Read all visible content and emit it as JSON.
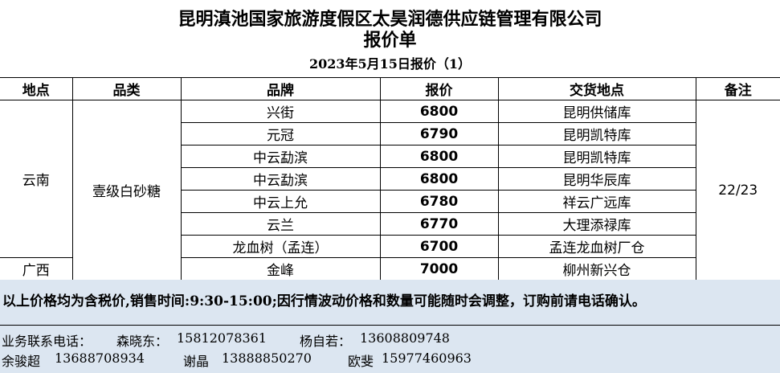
{
  "title": "昆明滇池国家旅游度假区太昊润德供应链管理有限公司",
  "subtitle": "报价单",
  "date": "2023年5月15日报价（1）",
  "headers": [
    "地点",
    "品类",
    "品牌",
    "报价",
    "交货地点",
    "备注"
  ],
  "category": "壹级白砂糖",
  "note": "22/23",
  "regions": {
    "yunnan": "云南",
    "guangxi": "广西"
  },
  "rows": [
    {
      "brand": "兴街",
      "price": "6800",
      "location": "昆明供储库"
    },
    {
      "brand": "元冠",
      "price": "6790",
      "location": "昆明凯特库"
    },
    {
      "brand": "中云勐滨",
      "price": "6800",
      "location": "昆明凯特库"
    },
    {
      "brand": "中云勐滨",
      "price": "6800",
      "location": "昆明华辰库"
    },
    {
      "brand": "中云上允",
      "price": "6780",
      "location": "祥云广远库"
    },
    {
      "brand": "云兰",
      "price": "6770",
      "location": "大理添禄库"
    },
    {
      "brand": "龙血树（孟连）",
      "price": "6700",
      "location": "孟连龙血树厂仓"
    },
    {
      "brand": "金峰",
      "price": "7000",
      "location": "柳州新兴仓"
    }
  ],
  "notice": "以上价格均为含税价,销售时间:9:30-15:00;因行情波动价格和数量可能随时会调整，订购前请电话确认。",
  "contacts": {
    "label": "业务联系电话：",
    "people": [
      {
        "name": "森晓东：",
        "phone": "15812078361"
      },
      {
        "name": "杨自若：",
        "phone": "13608809748"
      },
      {
        "name": "余骏超",
        "phone": "13688708934"
      },
      {
        "name": "谢晶",
        "phone": "13888850270"
      },
      {
        "name": "欧斐",
        "phone": "15977460963"
      }
    ]
  }
}
